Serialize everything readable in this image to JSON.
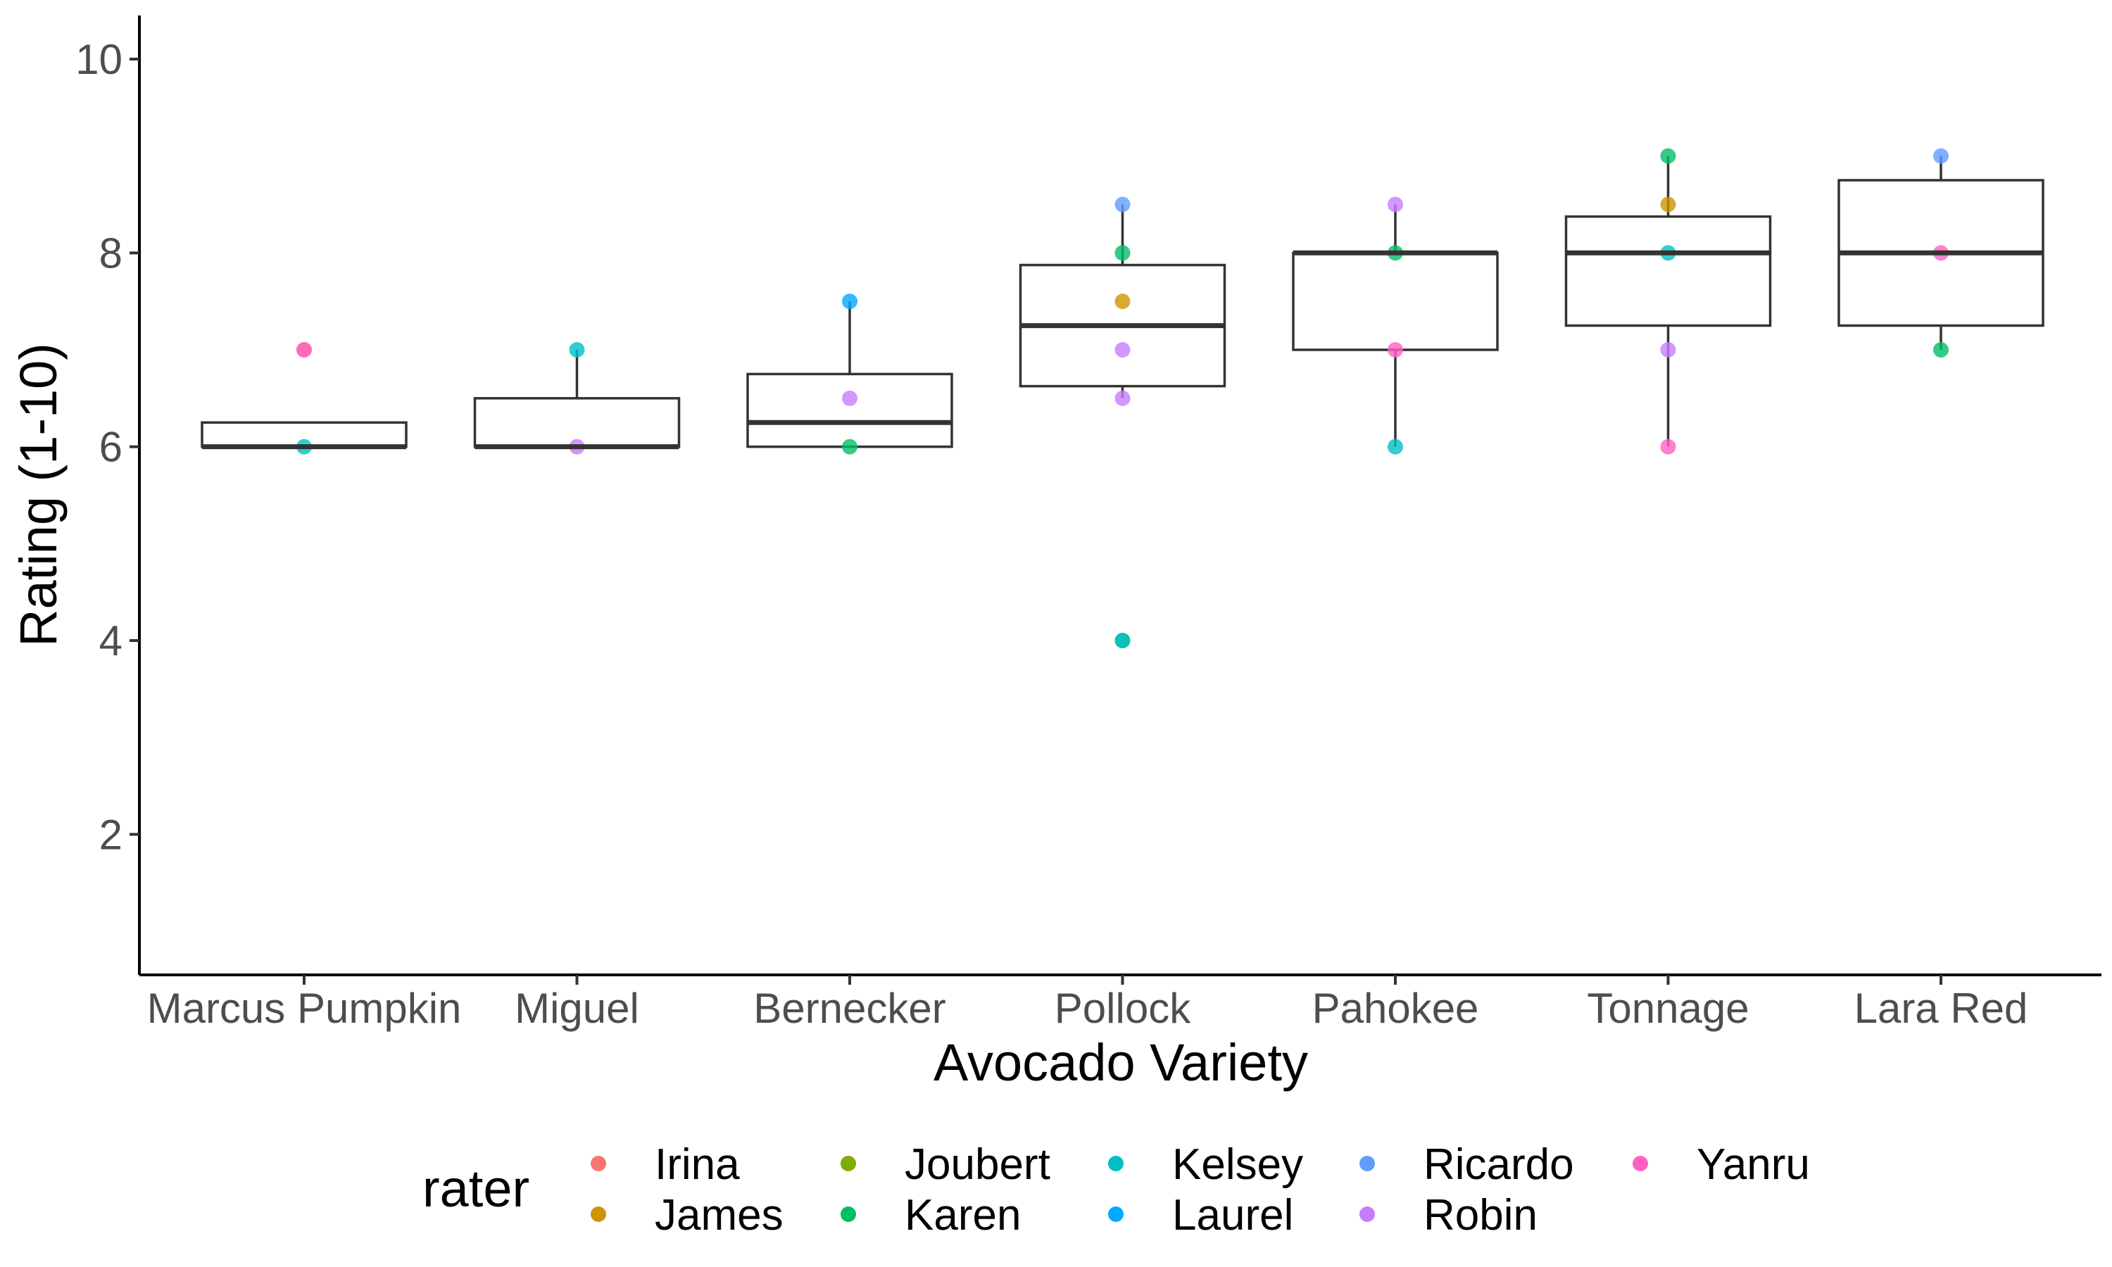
{
  "chart_data": {
    "type": "box",
    "title": "",
    "xlabel": "Avocado Variety",
    "ylabel": "Rating (1-10)",
    "ylim": [
      0.55,
      10.45
    ],
    "y_ticks": [
      2,
      4,
      6,
      8,
      10
    ],
    "grid": false,
    "legend_position": "bottom",
    "legend_title": "rater",
    "categories": [
      "Marcus Pumpkin",
      "Miguel",
      "Bernecker",
      "Pollock",
      "Pahokee",
      "Tonnage",
      "Lara Red"
    ],
    "boxes": [
      {
        "category": "Marcus Pumpkin",
        "min": 6,
        "q1": 6,
        "median": 6,
        "q3": 6.25,
        "max": 6.25
      },
      {
        "category": "Miguel",
        "min": 6,
        "q1": 6,
        "median": 6,
        "q3": 6.5,
        "max": 7
      },
      {
        "category": "Bernecker",
        "min": 6,
        "q1": 6,
        "median": 6.25,
        "q3": 6.75,
        "max": 7.5
      },
      {
        "category": "Pollock",
        "min": 6.5,
        "q1": 6.625,
        "median": 7.25,
        "q3": 7.875,
        "max": 8.5
      },
      {
        "category": "Pahokee",
        "min": 6,
        "q1": 7,
        "median": 8,
        "q3": 8,
        "max": 8.5
      },
      {
        "category": "Tonnage",
        "min": 6,
        "q1": 7.25,
        "median": 8,
        "q3": 8.375,
        "max": 9
      },
      {
        "category": "Lara Red",
        "min": 7,
        "q1": 7.25,
        "median": 8,
        "q3": 8.75,
        "max": 9
      }
    ],
    "raters": [
      {
        "name": "Irina",
        "color": "#F8766D"
      },
      {
        "name": "James",
        "color": "#CD9600"
      },
      {
        "name": "Joubert",
        "color": "#7CAE00"
      },
      {
        "name": "Karen",
        "color": "#00BE67"
      },
      {
        "name": "Kelsey",
        "color": "#00BFC4"
      },
      {
        "name": "Laurel",
        "color": "#00A9FF"
      },
      {
        "name": "Ricardo",
        "color": "#619CFF"
      },
      {
        "name": "Robin",
        "color": "#C77CFF"
      },
      {
        "name": "Yanru",
        "color": "#FF61C3"
      }
    ],
    "points": [
      {
        "category": "Marcus Pumpkin",
        "rater": "Irina",
        "value": 7
      },
      {
        "category": "Marcus Pumpkin",
        "rater": "Yanru",
        "value": 7
      },
      {
        "category": "Marcus Pumpkin",
        "rater": "Kelsey",
        "value": 6
      },
      {
        "category": "Miguel",
        "rater": "Kelsey",
        "value": 7
      },
      {
        "category": "Miguel",
        "rater": "Robin",
        "value": 6
      },
      {
        "category": "Bernecker",
        "rater": "Laurel",
        "value": 7.5
      },
      {
        "category": "Bernecker",
        "rater": "Robin",
        "value": 6.5
      },
      {
        "category": "Bernecker",
        "rater": "Karen",
        "value": 6
      },
      {
        "category": "Pollock",
        "rater": "Ricardo",
        "value": 8.5
      },
      {
        "category": "Pollock",
        "rater": "Karen",
        "value": 8
      },
      {
        "category": "Pollock",
        "rater": "James",
        "value": 7.5
      },
      {
        "category": "Pollock",
        "rater": "Robin",
        "value": 7
      },
      {
        "category": "Pollock",
        "rater": "Robin",
        "value": 6.5
      },
      {
        "category": "Pollock",
        "rater": "Karen",
        "value": 4
      },
      {
        "category": "Pollock",
        "rater": "Kelsey",
        "value": 4
      },
      {
        "category": "Pahokee",
        "rater": "Robin",
        "value": 8.5
      },
      {
        "category": "Pahokee",
        "rater": "Karen",
        "value": 8
      },
      {
        "category": "Pahokee",
        "rater": "Yanru",
        "value": 7
      },
      {
        "category": "Pahokee",
        "rater": "Kelsey",
        "value": 6
      },
      {
        "category": "Tonnage",
        "rater": "Karen",
        "value": 9
      },
      {
        "category": "Tonnage",
        "rater": "James",
        "value": 8.5
      },
      {
        "category": "Tonnage",
        "rater": "Kelsey",
        "value": 8
      },
      {
        "category": "Tonnage",
        "rater": "Robin",
        "value": 7
      },
      {
        "category": "Tonnage",
        "rater": "Yanru",
        "value": 6
      },
      {
        "category": "Lara Red",
        "rater": "Ricardo",
        "value": 9
      },
      {
        "category": "Lara Red",
        "rater": "Yanru",
        "value": 8
      },
      {
        "category": "Lara Red",
        "rater": "Karen",
        "value": 7
      }
    ]
  }
}
